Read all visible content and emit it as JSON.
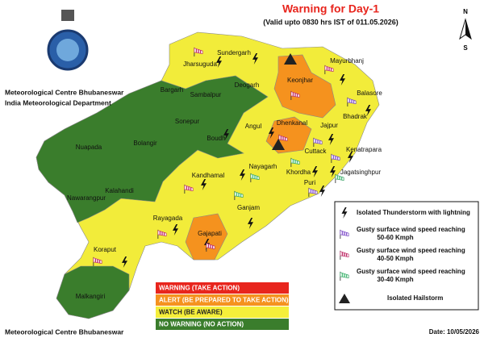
{
  "header": {
    "title": "Warning for Day-1",
    "subtitle": "(Valid upto 0830 hrs IST of 011.05.2026)"
  },
  "org": {
    "line1": "Meteorological Centre Bhubaneswar",
    "line2": "India Meteorological Department"
  },
  "compass": {
    "north": "N",
    "south": "S"
  },
  "districts": [
    {
      "name": "Sundergarh"
    },
    {
      "name": "Jharsuguda"
    },
    {
      "name": "Deogarh"
    },
    {
      "name": "Bargarh"
    },
    {
      "name": "Sambalpur"
    },
    {
      "name": "Keonjhar"
    },
    {
      "name": "Mayurbhanj"
    },
    {
      "name": "Balasore"
    },
    {
      "name": "Bhadrak"
    },
    {
      "name": "Dhenkanal"
    },
    {
      "name": "Jajpur"
    },
    {
      "name": "Angul"
    },
    {
      "name": "Sonepur"
    },
    {
      "name": "Boudh"
    },
    {
      "name": "Bolangir"
    },
    {
      "name": "Nuapada"
    },
    {
      "name": "Cuttack"
    },
    {
      "name": "Kenatrapara"
    },
    {
      "name": "Nayagarh"
    },
    {
      "name": "Khordha"
    },
    {
      "name": "Jagatsinghpur"
    },
    {
      "name": "Kandhamal"
    },
    {
      "name": "Puri"
    },
    {
      "name": "Kalahandi"
    },
    {
      "name": "Nawarangpur"
    },
    {
      "name": "Ganjam"
    },
    {
      "name": "Rayagada"
    },
    {
      "name": "Gajapati"
    },
    {
      "name": "Koraput"
    },
    {
      "name": "Malkangiri"
    }
  ],
  "legend": {
    "items": [
      {
        "lines": [
          "Isolated Thunderstorm with lightning"
        ]
      },
      {
        "lines": [
          "Gusty surface wind speed reaching",
          "50-60 Kmph"
        ]
      },
      {
        "lines": [
          "Gusty surface wind speed reaching",
          "40-50 Kmph"
        ]
      },
      {
        "lines": [
          "Gusty surface wind speed reaching",
          "30-40 Kmph"
        ]
      },
      {
        "lines": [
          "Isolated Hailstorm"
        ]
      }
    ]
  },
  "warning_levels": [
    {
      "label": "WARNING (TAKE ACTION)",
      "color": "#e8251d"
    },
    {
      "label": "ALERT (BE PREPARED TO TAKE ACTION)",
      "color": "#f5921e"
    },
    {
      "label": "WATCH (BE AWARE)",
      "color": "#f5ef3a"
    },
    {
      "label": "NO WARNING (NO ACTION)",
      "color": "#3a7d2c"
    }
  ],
  "footer": {
    "left": "Meteorological Centre Bhubaneswar",
    "right": "Date: 10/05/2026"
  }
}
